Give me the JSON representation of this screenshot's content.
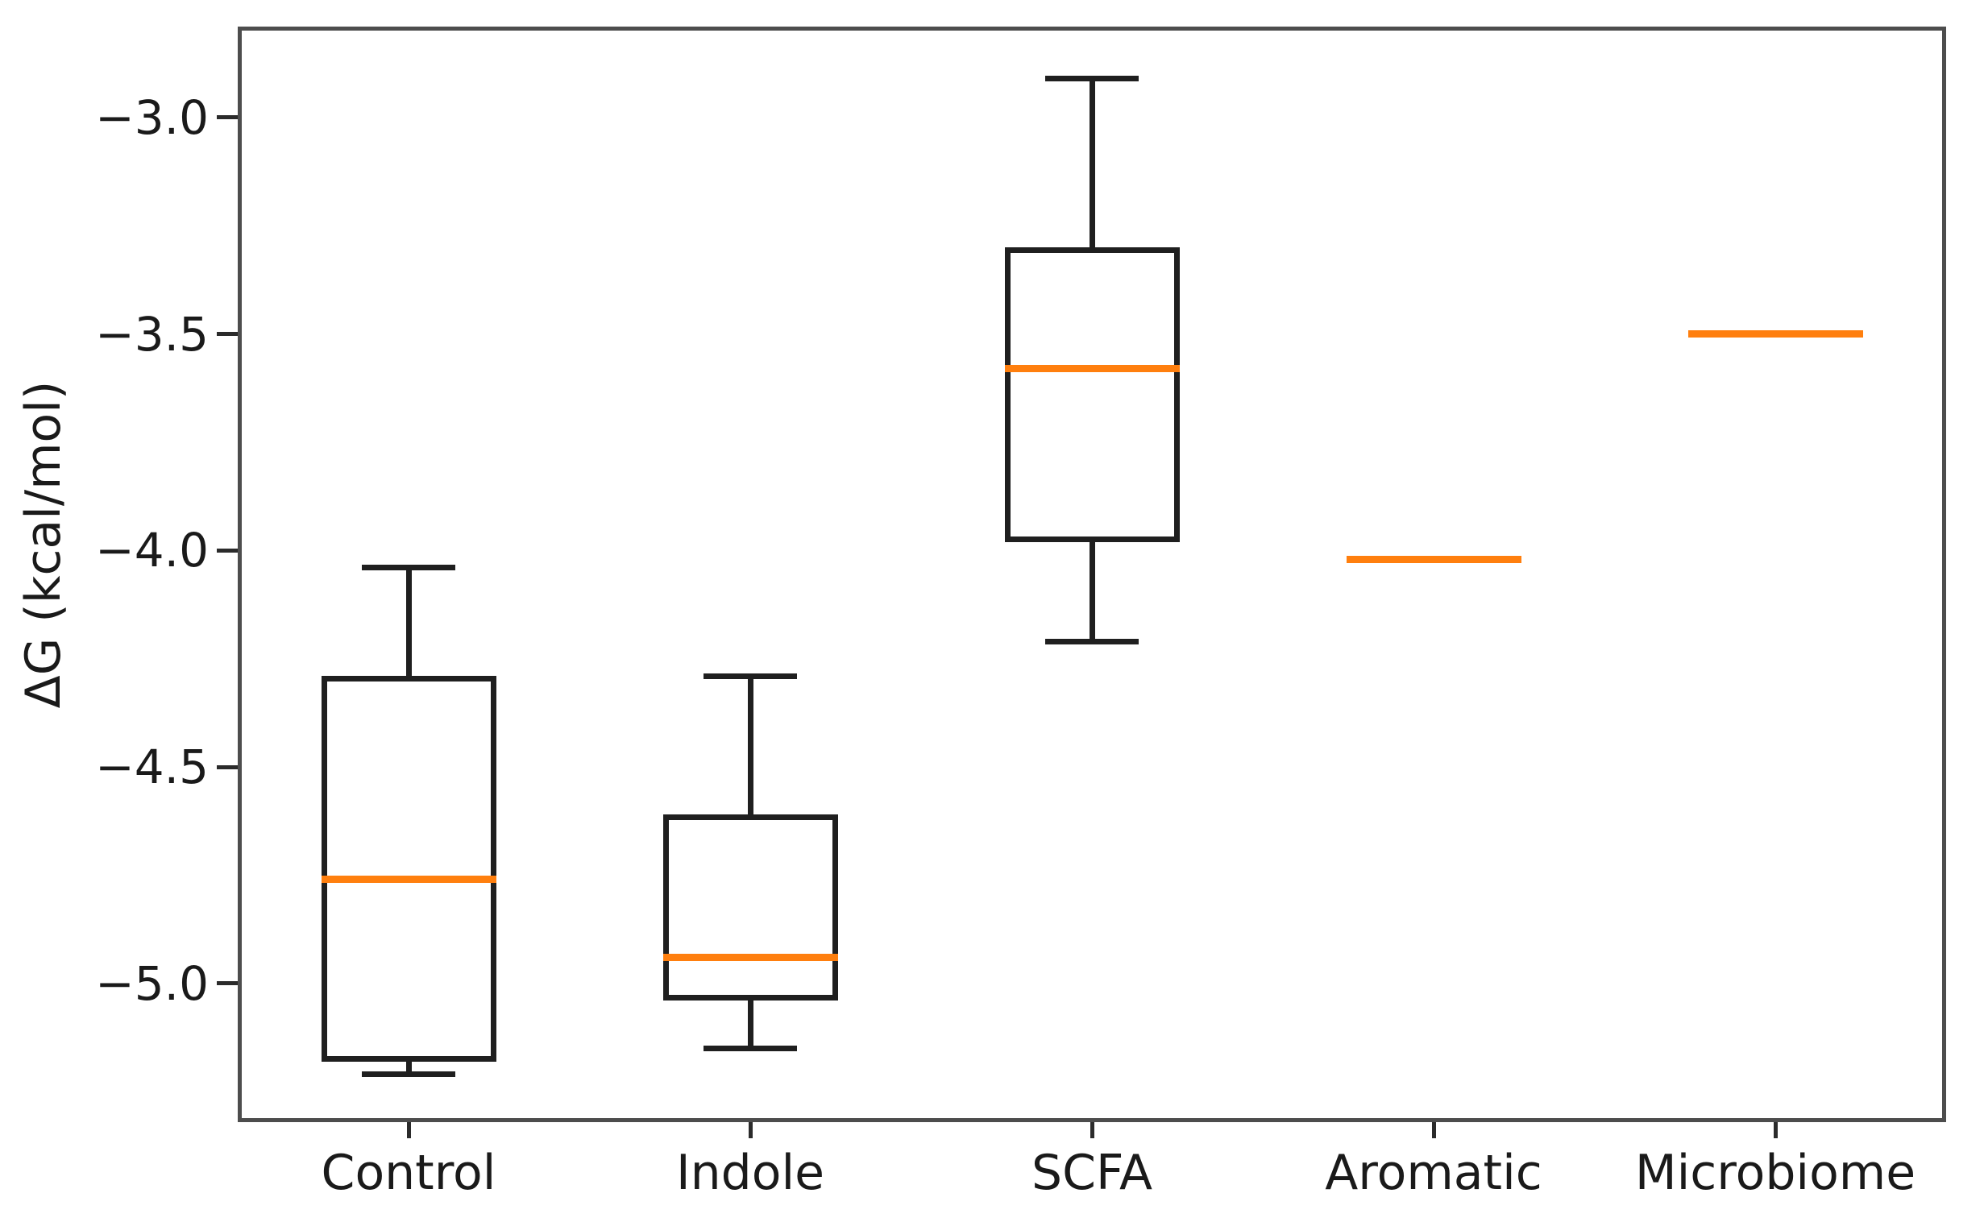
{
  "figure": {
    "background": "#ffffff"
  },
  "chart_data": {
    "type": "boxplot",
    "title": "",
    "xlabel": "",
    "ylabel": "ΔG (kcal/mol)",
    "categories": [
      "Control",
      "Indole",
      "SCFA",
      "Aromatic",
      "Microbiome"
    ],
    "series": [
      {
        "name": "Control",
        "whislo": -5.21,
        "q1": -5.18,
        "med": -4.76,
        "q3": -4.29,
        "whishi": -4.04
      },
      {
        "name": "Indole",
        "whislo": -5.15,
        "q1": -5.04,
        "med": -4.94,
        "q3": -4.61,
        "whishi": -4.29
      },
      {
        "name": "SCFA",
        "whislo": -4.21,
        "q1": -3.98,
        "med": -3.58,
        "q3": -3.3,
        "whishi": -2.91
      },
      {
        "name": "Aromatic",
        "whislo": -4.02,
        "q1": -4.02,
        "med": -4.02,
        "q3": -4.02,
        "whishi": -4.02
      },
      {
        "name": "Microbiome",
        "whislo": -3.5,
        "q1": -3.5,
        "med": -3.5,
        "q3": -3.5,
        "whishi": -3.5
      }
    ],
    "yticks": [
      -3.0,
      -3.5,
      -4.0,
      -4.5,
      -5.0
    ],
    "ytick_labels": [
      "−3.0",
      "−3.5",
      "−4.0",
      "−4.5",
      "−5.0"
    ],
    "ylim": [
      -5.32,
      -2.79
    ],
    "grid": false,
    "legend": null,
    "colors": {
      "median": "#ff7f0e",
      "box_stroke": "#1f1f1f",
      "frame": "#4d4d4d",
      "text": "#1a1a1a"
    }
  }
}
